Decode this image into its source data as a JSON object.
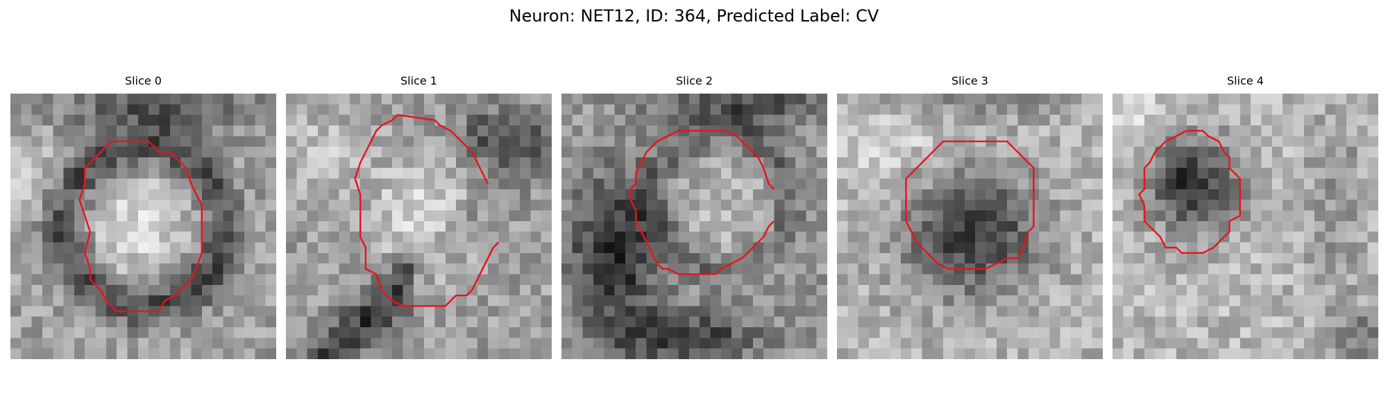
{
  "figure": {
    "title": "Neuron: NET12, ID: 364, Predicted Label: CV"
  },
  "colors": {
    "contour": "#e8141c",
    "background": "#ffffff"
  },
  "panels": [
    {
      "title": "Slice 0",
      "contour_closed": true,
      "image_seed": 11,
      "image_profile": "bright-center-dark-ring",
      "contour": [
        [
          9.5,
          4.5
        ],
        [
          13,
          4.5
        ],
        [
          14,
          5.5
        ],
        [
          15,
          5.5
        ],
        [
          16.5,
          7
        ],
        [
          17,
          8.5
        ],
        [
          17.5,
          9.5
        ],
        [
          18,
          10.5
        ],
        [
          18,
          15
        ],
        [
          17.5,
          16.5
        ],
        [
          17,
          17.5
        ],
        [
          16,
          18.5
        ],
        [
          15.5,
          19
        ],
        [
          14.5,
          19.5
        ],
        [
          14,
          20.5
        ],
        [
          10,
          20.5
        ],
        [
          9,
          19.5
        ],
        [
          8.5,
          18.5
        ],
        [
          7.5,
          17.5
        ],
        [
          7.5,
          16.5
        ],
        [
          7,
          15
        ],
        [
          7.5,
          13
        ],
        [
          7,
          11.5
        ],
        [
          6.5,
          10
        ],
        [
          7,
          8.5
        ],
        [
          7,
          7
        ],
        [
          8,
          6
        ],
        [
          9.5,
          4.5
        ]
      ]
    },
    {
      "title": "Slice 1",
      "contour_closed": false,
      "image_seed": 23,
      "image_profile": "bright-center-dark-diagonal",
      "contour": [
        [
          19,
          8.5
        ],
        [
          18.5,
          7.5
        ],
        [
          18,
          6.5
        ],
        [
          17.5,
          5.5
        ],
        [
          16.5,
          4.5
        ],
        [
          15.5,
          3.5
        ],
        [
          14.5,
          3
        ],
        [
          14,
          2.5
        ],
        [
          10.5,
          2
        ],
        [
          10,
          2.5
        ],
        [
          9,
          3
        ],
        [
          8.5,
          3.5
        ],
        [
          8,
          4.5
        ],
        [
          7.5,
          5.5
        ],
        [
          7,
          6.5
        ],
        [
          6.5,
          8
        ],
        [
          7,
          9.5
        ],
        [
          7,
          10.5
        ],
        [
          7,
          11.5
        ],
        [
          7,
          12.5
        ],
        [
          7,
          13.5
        ],
        [
          7.5,
          14.5
        ],
        [
          7.5,
          15.5
        ],
        [
          7.5,
          16.5
        ],
        [
          8.5,
          17
        ],
        [
          9,
          18.5
        ],
        [
          10,
          19.5
        ],
        [
          11,
          20
        ],
        [
          15,
          20
        ],
        [
          16,
          19
        ],
        [
          17,
          19
        ],
        [
          17.5,
          18.5
        ],
        [
          18,
          17.5
        ],
        [
          18.5,
          16.5
        ],
        [
          19,
          15.5
        ],
        [
          19.5,
          14.5
        ],
        [
          20,
          14
        ]
      ]
    },
    {
      "title": "Slice 2",
      "contour_closed": false,
      "image_seed": 37,
      "image_profile": "mid-center-dark-lower-left",
      "contour": [
        [
          20,
          9
        ],
        [
          19.5,
          8.5
        ],
        [
          19,
          7
        ],
        [
          18.5,
          6
        ],
        [
          17.5,
          5
        ],
        [
          16.5,
          4
        ],
        [
          15.5,
          3.5
        ],
        [
          11,
          3.5
        ],
        [
          10,
          4
        ],
        [
          9,
          4.5
        ],
        [
          8,
          5.5
        ],
        [
          7.5,
          6.5
        ],
        [
          7,
          7.5
        ],
        [
          7,
          8.5
        ],
        [
          6.5,
          9
        ],
        [
          6.5,
          10
        ],
        [
          7,
          11
        ],
        [
          7,
          12
        ],
        [
          7.5,
          13
        ],
        [
          8,
          14
        ],
        [
          8.5,
          15
        ],
        [
          9,
          16
        ],
        [
          9.5,
          16.5
        ],
        [
          10,
          16.5
        ],
        [
          11,
          17
        ],
        [
          14.5,
          17
        ],
        [
          15,
          16.5
        ],
        [
          16,
          16
        ],
        [
          17,
          15.5
        ],
        [
          18,
          14.5
        ],
        [
          19,
          13.5
        ],
        [
          19.5,
          12.5
        ],
        [
          20,
          12
        ]
      ]
    },
    {
      "title": "Slice 3",
      "contour_closed": true,
      "image_seed": 49,
      "image_profile": "dark-blob-center",
      "contour": [
        [
          10,
          4.5
        ],
        [
          16,
          4.5
        ],
        [
          17,
          5.5
        ],
        [
          18,
          6.5
        ],
        [
          18.5,
          7
        ],
        [
          18.5,
          12.5
        ],
        [
          18,
          13
        ],
        [
          17.5,
          14.5
        ],
        [
          17,
          15.5
        ],
        [
          16,
          15.5
        ],
        [
          15,
          16
        ],
        [
          14,
          16.5
        ],
        [
          10.5,
          16.5
        ],
        [
          9.5,
          16
        ],
        [
          8.5,
          15
        ],
        [
          7.5,
          14
        ],
        [
          7,
          13
        ],
        [
          6.5,
          12
        ],
        [
          6.5,
          8
        ],
        [
          7,
          7.5
        ],
        [
          8,
          6.5
        ],
        [
          9,
          5.5
        ],
        [
          10,
          4.5
        ]
      ]
    },
    {
      "title": "Slice 4",
      "contour_closed": true,
      "image_seed": 61,
      "image_profile": "dark-blob-upper-center",
      "contour": [
        [
          7,
          3.5
        ],
        [
          8.5,
          3.5
        ],
        [
          9,
          4
        ],
        [
          10,
          4.5
        ],
        [
          10.5,
          5.5
        ],
        [
          11,
          6
        ],
        [
          11,
          7
        ],
        [
          12,
          8
        ],
        [
          12,
          11.5
        ],
        [
          11,
          12
        ],
        [
          11,
          13
        ],
        [
          10,
          14
        ],
        [
          9.5,
          14.5
        ],
        [
          8.5,
          15
        ],
        [
          6.5,
          15
        ],
        [
          6,
          14.5
        ],
        [
          5,
          14.5
        ],
        [
          4.5,
          13.5
        ],
        [
          3.5,
          12.5
        ],
        [
          3,
          12
        ],
        [
          3,
          10.5
        ],
        [
          2.5,
          9.5
        ],
        [
          3,
          9
        ],
        [
          3,
          7
        ],
        [
          3.5,
          6.5
        ],
        [
          4,
          5.5
        ],
        [
          4.5,
          5
        ],
        [
          5,
          4.5
        ],
        [
          6,
          4
        ],
        [
          7,
          3.5
        ]
      ]
    }
  ]
}
